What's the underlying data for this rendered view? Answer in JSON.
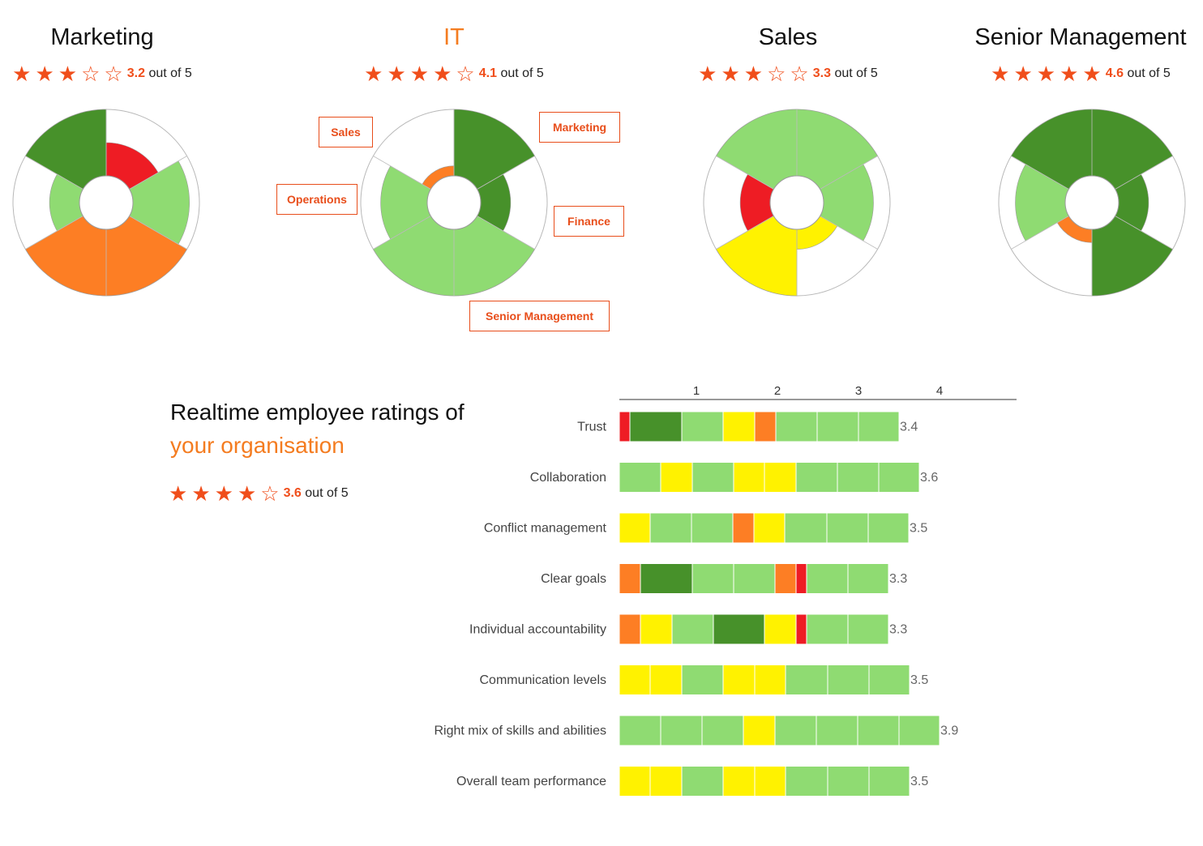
{
  "colors": {
    "dark_green": "#47912a",
    "light_green": "#8fdb72",
    "yellow": "#fff200",
    "orange": "#fd7e24",
    "red": "#ee1c24",
    "empty": "#ffffff",
    "accent": "#f04e1b"
  },
  "departments": [
    {
      "name": "Marketing",
      "rating": "3.2",
      "stars_filled": 3,
      "out_of_text": "out of 5",
      "accent": false,
      "segments": [
        {
          "start": 0,
          "end": 60,
          "level": 0.5,
          "color": "red"
        },
        {
          "start": 60,
          "end": 120,
          "level": 0.85,
          "color": "light_green"
        },
        {
          "start": 120,
          "end": 240,
          "level": 1.0,
          "color": "orange"
        },
        {
          "start": 240,
          "end": 300,
          "level": 0.45,
          "color": "light_green"
        },
        {
          "start": 300,
          "end": 360,
          "level": 1.0,
          "color": "dark_green"
        }
      ],
      "callouts": []
    },
    {
      "name": "IT",
      "rating": "4.1",
      "stars_filled": 4,
      "out_of_text": "out of 5",
      "accent": true,
      "segments": [
        {
          "start": 0,
          "end": 60,
          "level": 1.0,
          "color": "dark_green"
        },
        {
          "start": 60,
          "end": 120,
          "level": 0.45,
          "color": "dark_green"
        },
        {
          "start": 120,
          "end": 240,
          "level": 1.0,
          "color": "light_green"
        },
        {
          "start": 240,
          "end": 300,
          "level": 0.7,
          "color": "light_green"
        },
        {
          "start": 300,
          "end": 360,
          "level": 0.15,
          "color": "orange"
        }
      ],
      "callouts": [
        "Marketing",
        "Finance",
        "Senior Management",
        "Operations",
        "Sales"
      ]
    },
    {
      "name": "Sales",
      "rating": "3.3",
      "stars_filled": 3,
      "out_of_text": "out of 5",
      "accent": false,
      "segments": [
        {
          "start": 60,
          "end": 120,
          "level": 0.75,
          "color": "light_green"
        },
        {
          "start": 120,
          "end": 180,
          "level": 0.3,
          "color": "yellow"
        },
        {
          "start": 180,
          "end": 240,
          "level": 1.0,
          "color": "yellow"
        },
        {
          "start": 240,
          "end": 300,
          "level": 0.45,
          "color": "red"
        },
        {
          "start": 300,
          "end": 420,
          "level": 1.0,
          "color": "light_green"
        }
      ],
      "callouts": []
    },
    {
      "name": "Senior Management",
      "rating": "4.6",
      "stars_filled": 5,
      "out_of_text": "out of 5",
      "accent": false,
      "segments": [
        {
          "start": 60,
          "end": 120,
          "level": 0.45,
          "color": "dark_green"
        },
        {
          "start": 120,
          "end": 180,
          "level": 1.0,
          "color": "dark_green"
        },
        {
          "start": 180,
          "end": 240,
          "level": 0.2,
          "color": "orange"
        },
        {
          "start": 240,
          "end": 300,
          "level": 0.75,
          "color": "light_green"
        },
        {
          "start": 300,
          "end": 420,
          "level": 1.0,
          "color": "dark_green"
        }
      ],
      "callouts": []
    }
  ],
  "org": {
    "title_line1": "Realtime employee ratings of",
    "title_line2": "your organisation",
    "rating": "3.6",
    "stars_filled": 4,
    "out_of_text": "out of 5"
  },
  "chart_data": {
    "type": "bar",
    "stacked": true,
    "x_ticks": [
      "1",
      "2",
      "3",
      "4"
    ],
    "xlim": [
      0,
      4.9
    ],
    "categories": [
      "Trust",
      "Collaboration",
      "Conflict management",
      "Clear goals",
      "Individual accountability",
      "Communication levels",
      "Right mix of skills and abilities",
      "Overall team performance"
    ],
    "values": [
      3.4,
      3.6,
      3.5,
      3.3,
      3.3,
      3.5,
      3.9,
      3.5
    ],
    "value_labels": [
      "3.4",
      "3.6",
      "3.5",
      "3.3",
      "3.3",
      "3.5",
      "3.9",
      "3.5"
    ],
    "rows": [
      [
        {
          "w": 0.13,
          "c": "red"
        },
        {
          "w": 0.64,
          "c": "dark_green"
        },
        {
          "w": 0.51,
          "c": "light_green"
        },
        {
          "w": 0.39,
          "c": "yellow"
        },
        {
          "w": 0.26,
          "c": "orange"
        },
        {
          "w": 0.51,
          "c": "light_green"
        },
        {
          "w": 0.51,
          "c": "light_green"
        },
        {
          "w": 0.5,
          "c": "light_green"
        }
      ],
      [
        {
          "w": 0.51,
          "c": "light_green"
        },
        {
          "w": 0.39,
          "c": "yellow"
        },
        {
          "w": 0.51,
          "c": "light_green"
        },
        {
          "w": 0.38,
          "c": "yellow"
        },
        {
          "w": 0.39,
          "c": "yellow"
        },
        {
          "w": 0.51,
          "c": "light_green"
        },
        {
          "w": 0.51,
          "c": "light_green"
        },
        {
          "w": 0.5,
          "c": "light_green"
        }
      ],
      [
        {
          "w": 0.38,
          "c": "yellow"
        },
        {
          "w": 0.51,
          "c": "light_green"
        },
        {
          "w": 0.51,
          "c": "light_green"
        },
        {
          "w": 0.26,
          "c": "orange"
        },
        {
          "w": 0.38,
          "c": "yellow"
        },
        {
          "w": 0.52,
          "c": "light_green"
        },
        {
          "w": 0.51,
          "c": "light_green"
        },
        {
          "w": 0.5,
          "c": "light_green"
        }
      ],
      [
        {
          "w": 0.26,
          "c": "orange"
        },
        {
          "w": 0.64,
          "c": "dark_green"
        },
        {
          "w": 0.51,
          "c": "light_green"
        },
        {
          "w": 0.51,
          "c": "light_green"
        },
        {
          "w": 0.26,
          "c": "orange"
        },
        {
          "w": 0.13,
          "c": "red"
        },
        {
          "w": 0.51,
          "c": "light_green"
        },
        {
          "w": 0.5,
          "c": "light_green"
        }
      ],
      [
        {
          "w": 0.26,
          "c": "orange"
        },
        {
          "w": 0.39,
          "c": "yellow"
        },
        {
          "w": 0.51,
          "c": "light_green"
        },
        {
          "w": 0.63,
          "c": "dark_green"
        },
        {
          "w": 0.39,
          "c": "yellow"
        },
        {
          "w": 0.13,
          "c": "red"
        },
        {
          "w": 0.51,
          "c": "light_green"
        },
        {
          "w": 0.5,
          "c": "light_green"
        }
      ],
      [
        {
          "w": 0.38,
          "c": "yellow"
        },
        {
          "w": 0.39,
          "c": "yellow"
        },
        {
          "w": 0.51,
          "c": "light_green"
        },
        {
          "w": 0.39,
          "c": "yellow"
        },
        {
          "w": 0.38,
          "c": "yellow"
        },
        {
          "w": 0.52,
          "c": "light_green"
        },
        {
          "w": 0.51,
          "c": "light_green"
        },
        {
          "w": 0.5,
          "c": "light_green"
        }
      ],
      [
        {
          "w": 0.51,
          "c": "light_green"
        },
        {
          "w": 0.51,
          "c": "light_green"
        },
        {
          "w": 0.51,
          "c": "light_green"
        },
        {
          "w": 0.39,
          "c": "yellow"
        },
        {
          "w": 0.51,
          "c": "light_green"
        },
        {
          "w": 0.51,
          "c": "light_green"
        },
        {
          "w": 0.51,
          "c": "light_green"
        },
        {
          "w": 0.5,
          "c": "light_green"
        }
      ],
      [
        {
          "w": 0.38,
          "c": "yellow"
        },
        {
          "w": 0.39,
          "c": "yellow"
        },
        {
          "w": 0.51,
          "c": "light_green"
        },
        {
          "w": 0.39,
          "c": "yellow"
        },
        {
          "w": 0.38,
          "c": "yellow"
        },
        {
          "w": 0.52,
          "c": "light_green"
        },
        {
          "w": 0.51,
          "c": "light_green"
        },
        {
          "w": 0.5,
          "c": "light_green"
        }
      ]
    ]
  }
}
